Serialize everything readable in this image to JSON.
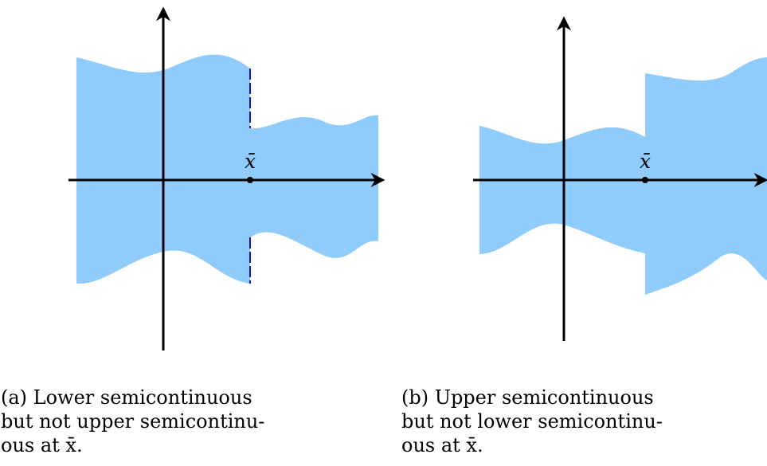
{
  "panel_a": {
    "point_label": "x̄",
    "caption_lines": [
      "(a)  Lower  semicontinuous",
      "but not upper semicontinu-",
      "ous at x̄."
    ]
  },
  "panel_b": {
    "point_label": "x̄",
    "caption_lines": [
      "(b)  Upper  semicontinuous",
      "but not lower semicontinu-",
      "ous at x̄."
    ]
  },
  "colors": {
    "region_fill": "#8fcbfb",
    "boundary_dash": "#1f10c8",
    "axis": "#000000"
  }
}
